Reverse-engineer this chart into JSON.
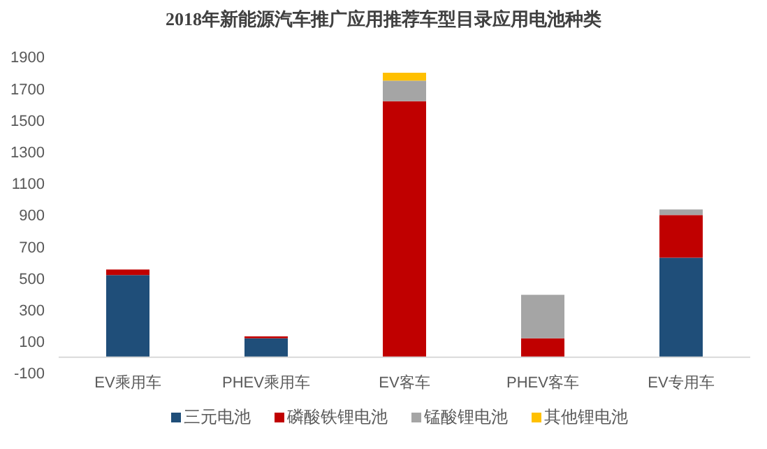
{
  "chart_data": {
    "type": "bar",
    "title": "2018年新能源汽车推广应用推荐车型目录应用电池种类",
    "categories": [
      "EV乘用车",
      "PHEV乘用车",
      "EV客车",
      "PHEV客车",
      "EV专用车"
    ],
    "stacked": true,
    "series": [
      {
        "name": "三元电池",
        "color": "#1f4e79",
        "values": [
          520,
          120,
          0,
          0,
          630
        ]
      },
      {
        "name": "磷酸铁锂电池",
        "color": "#c00000",
        "values": [
          35,
          12,
          1620,
          120,
          270
        ]
      },
      {
        "name": "锰酸锂电池",
        "color": "#a5a5a5",
        "values": [
          0,
          0,
          130,
          275,
          35
        ]
      },
      {
        "name": "其他锂电池",
        "color": "#ffc000",
        "values": [
          0,
          0,
          50,
          0,
          0
        ]
      }
    ],
    "ylim": [
      -100,
      1900
    ],
    "yticks": [
      -100,
      100,
      300,
      500,
      700,
      900,
      1100,
      1300,
      1500,
      1700,
      1900
    ],
    "legend": "bottom"
  }
}
